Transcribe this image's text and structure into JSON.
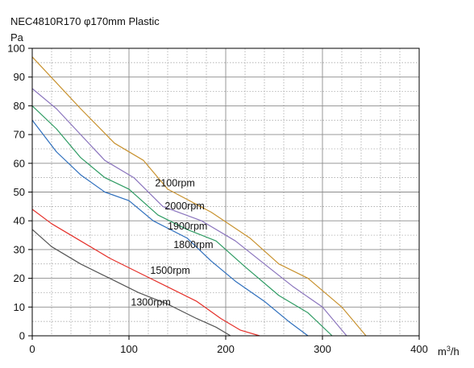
{
  "chart_data": {
    "type": "line",
    "title": "NEC4810R170 φ170mm Plastic",
    "ylabel": "Pa",
    "xlabel_main": "m",
    "xlabel_sup": "3",
    "xlabel_tail": "/h",
    "xlim": [
      0,
      400
    ],
    "ylim": [
      0,
      100
    ],
    "xticks": [
      0,
      100,
      200,
      300,
      400
    ],
    "yticks": [
      0,
      10,
      20,
      30,
      40,
      50,
      60,
      70,
      80,
      90,
      100
    ],
    "x_minor_step": 20,
    "y_minor_step": 5,
    "grid": true,
    "series": [
      {
        "name": "2100rpm",
        "color": "#c8922f",
        "points": [
          [
            0,
            97
          ],
          [
            25,
            88
          ],
          [
            50,
            79
          ],
          [
            85,
            67
          ],
          [
            115,
            61
          ],
          [
            140,
            51
          ],
          [
            185,
            43
          ],
          [
            225,
            34
          ],
          [
            255,
            25
          ],
          [
            285,
            20
          ],
          [
            320,
            10
          ],
          [
            345,
            0
          ]
        ]
      },
      {
        "name": "2000rpm",
        "color": "#8a74bd",
        "points": [
          [
            0,
            86
          ],
          [
            25,
            79
          ],
          [
            50,
            70
          ],
          [
            75,
            61
          ],
          [
            105,
            55
          ],
          [
            135,
            45
          ],
          [
            175,
            40
          ],
          [
            210,
            33
          ],
          [
            240,
            25
          ],
          [
            270,
            17
          ],
          [
            300,
            10
          ],
          [
            325,
            0
          ]
        ]
      },
      {
        "name": "1900rpm",
        "color": "#2e9b63",
        "points": [
          [
            0,
            80
          ],
          [
            25,
            72
          ],
          [
            50,
            62
          ],
          [
            75,
            55
          ],
          [
            100,
            51
          ],
          [
            130,
            42
          ],
          [
            160,
            37
          ],
          [
            190,
            33
          ],
          [
            220,
            24
          ],
          [
            255,
            14
          ],
          [
            285,
            8
          ],
          [
            310,
            0
          ]
        ]
      },
      {
        "name": "1800rpm",
        "color": "#2e6fbd",
        "points": [
          [
            0,
            75
          ],
          [
            25,
            64
          ],
          [
            50,
            56
          ],
          [
            75,
            50
          ],
          [
            100,
            47
          ],
          [
            125,
            40
          ],
          [
            160,
            34
          ],
          [
            185,
            26
          ],
          [
            210,
            19
          ],
          [
            240,
            12
          ],
          [
            265,
            5
          ],
          [
            285,
            0
          ]
        ]
      },
      {
        "name": "1500rpm",
        "color": "#e5302a",
        "points": [
          [
            0,
            44
          ],
          [
            20,
            39
          ],
          [
            50,
            33
          ],
          [
            80,
            27
          ],
          [
            110,
            22
          ],
          [
            140,
            17
          ],
          [
            170,
            12
          ],
          [
            195,
            6
          ],
          [
            215,
            2
          ],
          [
            235,
            0
          ]
        ]
      },
      {
        "name": "1300rpm",
        "color": "#555555",
        "points": [
          [
            0,
            37
          ],
          [
            20,
            31
          ],
          [
            50,
            25
          ],
          [
            80,
            20
          ],
          [
            110,
            15
          ],
          [
            140,
            11
          ],
          [
            170,
            6
          ],
          [
            190,
            3
          ],
          [
            205,
            0
          ]
        ]
      }
    ],
    "labels": [
      {
        "text": "2100rpm",
        "x": 127,
        "y": 52
      },
      {
        "text": "2000rpm",
        "x": 137,
        "y": 44
      },
      {
        "text": "1900rpm",
        "x": 140,
        "y": 37
      },
      {
        "text": "1800rpm",
        "x": 146,
        "y": 30.5
      },
      {
        "text": "1500rpm",
        "x": 122,
        "y": 21.5
      },
      {
        "text": "1300rpm",
        "x": 102,
        "y": 10.5
      }
    ]
  }
}
